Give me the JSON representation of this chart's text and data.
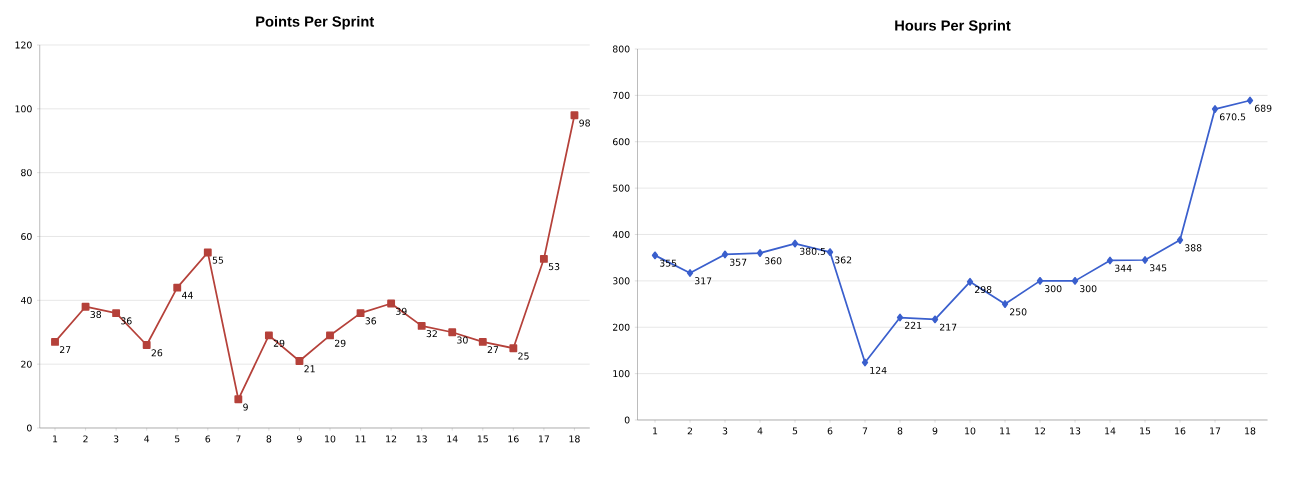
{
  "chart_data": [
    {
      "type": "line",
      "title": "Points Per Sprint",
      "categories": [
        "1",
        "2",
        "3",
        "4",
        "5",
        "6",
        "7",
        "8",
        "9",
        "10",
        "11",
        "12",
        "13",
        "14",
        "15",
        "16",
        "17",
        "18"
      ],
      "series": [
        {
          "color": "#b5413a",
          "values": [
            27,
            38,
            36,
            26,
            44,
            55,
            9,
            29,
            21,
            29,
            36,
            39,
            32,
            30,
            27,
            25,
            53,
            98
          ]
        }
      ],
      "ylim": [
        0,
        120
      ],
      "yticks": [
        0,
        20,
        40,
        60,
        80,
        100,
        120
      ],
      "grid": "y",
      "marker": "square",
      "data_labels": true
    },
    {
      "type": "line",
      "title": "Hours Per Sprint",
      "categories": [
        "1",
        "2",
        "3",
        "4",
        "5",
        "6",
        "7",
        "8",
        "9",
        "10",
        "11",
        "12",
        "13",
        "14",
        "15",
        "16",
        "17",
        "18"
      ],
      "series": [
        {
          "color": "#3a5fcd",
          "values": [
            355,
            317,
            357,
            360,
            380.5,
            362,
            124,
            221,
            217,
            298,
            250,
            300,
            300,
            344,
            345,
            388,
            670.5,
            689
          ]
        }
      ],
      "ylim": [
        0,
        800
      ],
      "yticks": [
        0,
        100,
        200,
        300,
        400,
        500,
        600,
        700,
        800
      ],
      "grid": "y",
      "marker": "diamond",
      "data_labels": true
    }
  ]
}
